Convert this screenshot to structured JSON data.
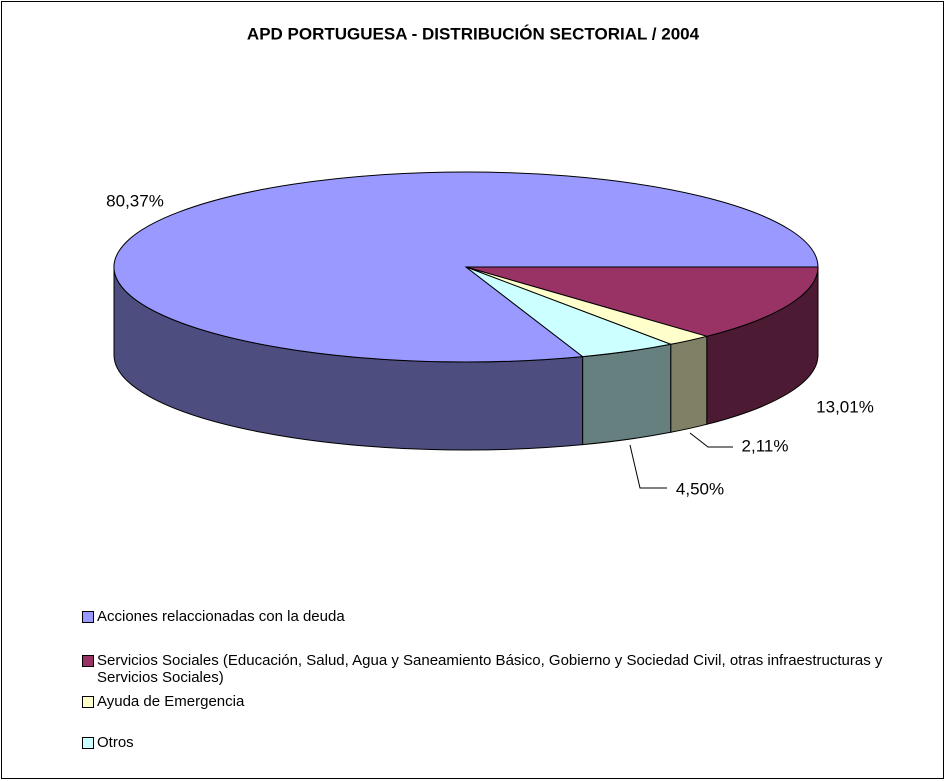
{
  "chart_data": {
    "type": "pie3d",
    "title": "APD PORTUGUESA - DISTRIBUCIÓN SECTORIAL / 2004",
    "categories": [
      "Acciones relaccionadas con la deuda",
      "Servicios Sociales (Educación, Salud, Agua y Saneamiento Básico, Gobierno y Sociedad Civil, otras infraestructuras y Servicios Sociales)",
      "Ayuda de Emergencia",
      "Otros"
    ],
    "values": [
      80.37,
      13.01,
      2.11,
      4.5
    ],
    "value_labels": [
      "80,37%",
      "13,01%",
      "2,11%",
      "4,50%"
    ],
    "colors": [
      "#9999ff",
      "#993366",
      "#ffffcc",
      "#ccffff"
    ]
  }
}
